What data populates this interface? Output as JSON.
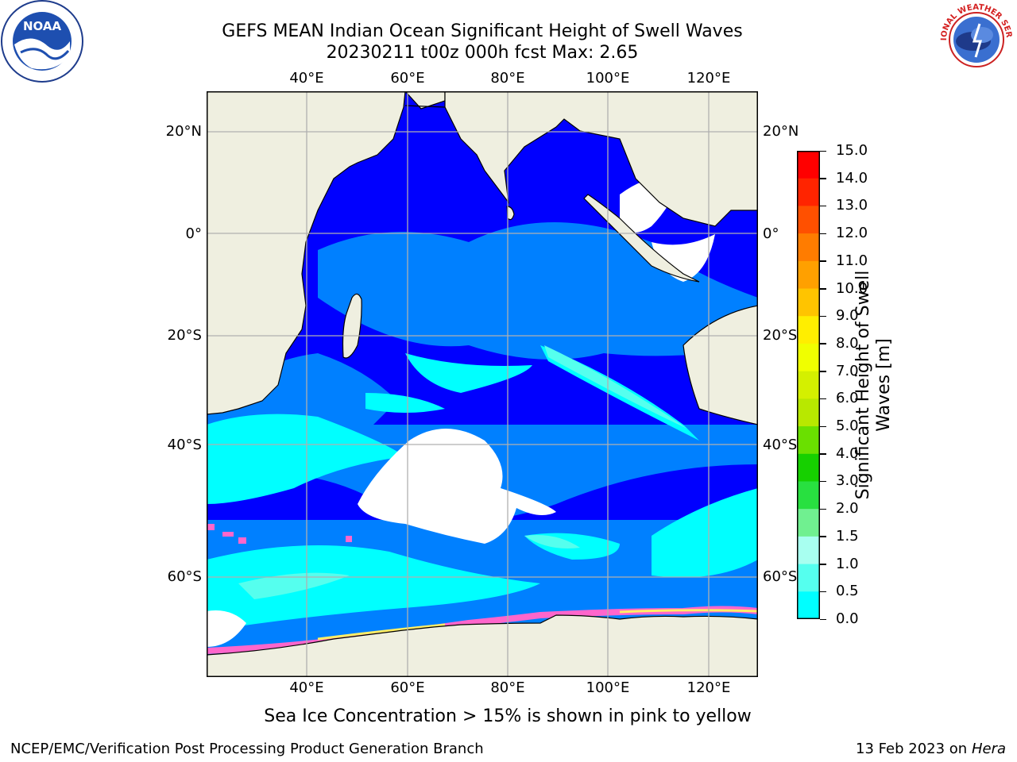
{
  "header": {
    "title_line1": "GEFS MEAN Indian Ocean Significant Height of Swell Waves",
    "title_line2": "20230211 t00z 000h fcst   Max: 2.65"
  },
  "logos": {
    "left": {
      "name": "noaa-logo",
      "text": "NOAA"
    },
    "right": {
      "name": "nws-logo",
      "text": "NATIONAL WEATHER SERVICE"
    }
  },
  "map": {
    "lon_labels_top": [
      "40°E",
      "60°E",
      "80°E",
      "100°E",
      "120°E"
    ],
    "lon_labels_bottom": [
      "40°E",
      "60°E",
      "80°E",
      "100°E",
      "120°E"
    ],
    "lat_labels_left": [
      "20°N",
      "0°",
      "20°S",
      "40°S",
      "60°S"
    ],
    "lat_labels_right": [
      "20°N",
      "0°",
      "20°S",
      "40°S",
      "60°S"
    ],
    "land_color": "#efefe0",
    "grid_color": "#b0b0b0"
  },
  "colorbar": {
    "label_line1": "Significant Height of Swell",
    "label_line2": "Waves [m]",
    "ticks": [
      "15.0",
      "14.0",
      "13.0",
      "12.0",
      "11.0",
      "10.0",
      "9.0",
      "8.0",
      "7.0",
      "6.0",
      "5.0",
      "4.0",
      "3.0",
      "2.0",
      "1.5",
      "1.0",
      "0.5",
      "0.0"
    ],
    "colors": [
      "#ff0000",
      "#ff2400",
      "#ff5000",
      "#ff7c00",
      "#ffa000",
      "#ffc400",
      "#ffee00",
      "#f0ff00",
      "#d4f000",
      "#b8e800",
      "#6ae000",
      "#16d000",
      "#28e040",
      "#70f090",
      "#a8fff0",
      "#55ffee",
      "#00ffff",
      "#0080ff",
      "#0000ff"
    ]
  },
  "note": "Sea Ice Concentration > 15% is shown in pink to yellow",
  "footer": {
    "left": "NCEP/EMC/Verification Post Processing Product Generation Branch",
    "date": "13 Feb 2023 on",
    "machine": "Hera"
  }
}
